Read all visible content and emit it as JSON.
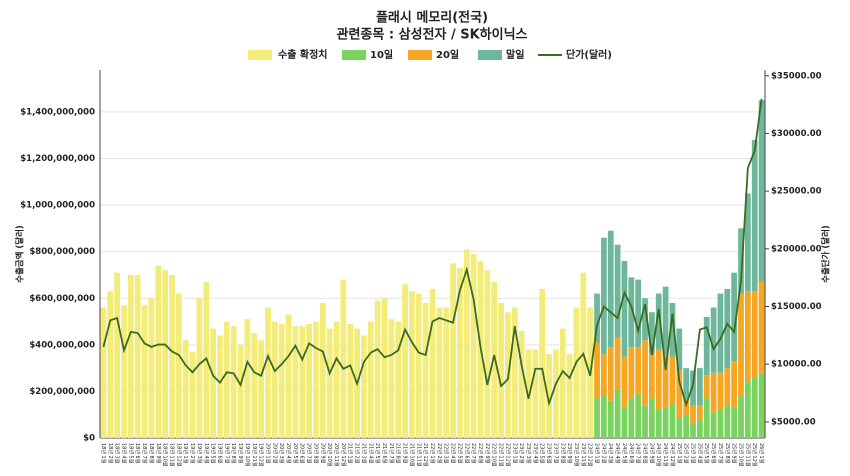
{
  "chart_data": {
    "type": "bar-line",
    "title": "플래시 메모리(전국)",
    "subtitle": "관련종목 : 삼성전자 / SK하이닉스",
    "y_label": "수출금액 (달러)",
    "y2_label": "수출단가 (달러)",
    "categories": [
      "18년 1월",
      "18년 2월",
      "18년 3월",
      "18년 4월",
      "18년 5월",
      "18년 6월",
      "18년 7월",
      "18년 8월",
      "18년 9월",
      "18년 10월",
      "18년 11월",
      "18년 12월",
      "19년 1월",
      "19년 2월",
      "19년 3월",
      "19년 4월",
      "19년 5월",
      "19년 6월",
      "19년 7월",
      "19년 8월",
      "19년 9월",
      "19년 10월",
      "19년 11월",
      "19년 12월",
      "20년 1월",
      "20년 2월",
      "20년 3월",
      "20년 4월",
      "20년 5월",
      "20년 6월",
      "20년 7월",
      "20년 8월",
      "20년 9월",
      "20년 10월",
      "20년 11월",
      "20년 12월",
      "21년 1월",
      "21년 2월",
      "21년 3월",
      "21년 4월",
      "21년 5월",
      "21년 6월",
      "21년 7월",
      "21년 8월",
      "21년 9월",
      "21년 10월",
      "21년 11월",
      "21년 12월",
      "22년 1월",
      "22년 2월",
      "22년 3월",
      "22년 4월",
      "22년 5월",
      "22년 6월",
      "22년 7월",
      "22년 8월",
      "22년 9월",
      "22년 10월",
      "22년 11월",
      "22년 12월",
      "23년 1월",
      "23년 2월",
      "23년 3월",
      "23년 4월",
      "23년 5월",
      "23년 6월",
      "23년 7월",
      "23년 8월",
      "23년 9월",
      "23년 10월",
      "23년 11월",
      "23년 12월",
      "24년 1월",
      "24년 2월",
      "24년 3월",
      "24년 4월",
      "24년 5월",
      "24년 6월",
      "24년 7월",
      "24년 8월",
      "24년 9월",
      "24년 10월",
      "24년 11월",
      "24년 12월",
      "25년 1월",
      "25년 2월",
      "25년 3월",
      "25년 4월",
      "25년 5월",
      "25년 6월",
      "25년 7월",
      "25년 8월",
      "25년 9월",
      "25년 10월",
      "25년 11월",
      "25년 12월",
      "26년 1월"
    ],
    "series": [
      {
        "name": "수출 확정치",
        "type": "bar",
        "color": "#f3ec78",
        "values": [
          560000000,
          630000000,
          710000000,
          570000000,
          700000000,
          700000000,
          570000000,
          600000000,
          740000000,
          720000000,
          700000000,
          620000000,
          420000000,
          370000000,
          600000000,
          670000000,
          470000000,
          440000000,
          500000000,
          480000000,
          400000000,
          510000000,
          450000000,
          420000000,
          560000000,
          500000000,
          490000000,
          530000000,
          480000000,
          480000000,
          490000000,
          500000000,
          580000000,
          470000000,
          500000000,
          680000000,
          490000000,
          470000000,
          440000000,
          500000000,
          590000000,
          600000000,
          510000000,
          500000000,
          660000000,
          630000000,
          620000000,
          580000000,
          640000000,
          560000000,
          560000000,
          750000000,
          730000000,
          810000000,
          790000000,
          760000000,
          720000000,
          670000000,
          580000000,
          540000000,
          560000000,
          460000000,
          380000000,
          380000000,
          640000000,
          360000000,
          380000000,
          470000000,
          360000000,
          560000000,
          710000000,
          560000000,
          null,
          null,
          null,
          null,
          null,
          null,
          null,
          null,
          null,
          null,
          null,
          null,
          null,
          null,
          null,
          null,
          null,
          null,
          null,
          null,
          null,
          null,
          null,
          null,
          null
        ]
      },
      {
        "name": "10일",
        "type": "bar",
        "color": "#7bd35f",
        "values": [
          null,
          null,
          null,
          null,
          null,
          null,
          null,
          null,
          null,
          null,
          null,
          null,
          null,
          null,
          null,
          null,
          null,
          null,
          null,
          null,
          null,
          null,
          null,
          null,
          null,
          null,
          null,
          null,
          null,
          null,
          null,
          null,
          null,
          null,
          null,
          null,
          null,
          null,
          null,
          null,
          null,
          null,
          null,
          null,
          null,
          null,
          null,
          null,
          null,
          null,
          null,
          null,
          null,
          null,
          null,
          null,
          null,
          null,
          null,
          null,
          null,
          null,
          null,
          null,
          null,
          null,
          null,
          null,
          null,
          null,
          null,
          null,
          170000000,
          180000000,
          160000000,
          210000000,
          130000000,
          170000000,
          190000000,
          140000000,
          170000000,
          120000000,
          130000000,
          150000000,
          90000000,
          100000000,
          60000000,
          80000000,
          170000000,
          110000000,
          120000000,
          140000000,
          130000000,
          180000000,
          240000000,
          260000000,
          280000000
        ]
      },
      {
        "name": "20일",
        "type": "bar",
        "color": "#f5a623",
        "values": [
          null,
          null,
          null,
          null,
          null,
          null,
          null,
          null,
          null,
          null,
          null,
          null,
          null,
          null,
          null,
          null,
          null,
          null,
          null,
          null,
          null,
          null,
          null,
          null,
          null,
          null,
          null,
          null,
          null,
          null,
          null,
          null,
          null,
          null,
          null,
          null,
          null,
          null,
          null,
          null,
          null,
          null,
          null,
          null,
          null,
          null,
          null,
          null,
          null,
          null,
          null,
          null,
          null,
          null,
          null,
          null,
          null,
          null,
          null,
          null,
          null,
          null,
          null,
          null,
          null,
          null,
          null,
          null,
          null,
          null,
          null,
          null,
          240000000,
          180000000,
          230000000,
          220000000,
          220000000,
          220000000,
          200000000,
          280000000,
          190000000,
          260000000,
          230000000,
          200000000,
          200000000,
          70000000,
          80000000,
          60000000,
          100000000,
          170000000,
          160000000,
          160000000,
          200000000,
          440000000,
          390000000,
          370000000,
          390000000
        ]
      },
      {
        "name": "말일",
        "type": "bar",
        "color": "#6db89c",
        "values": [
          null,
          null,
          null,
          null,
          null,
          null,
          null,
          null,
          null,
          null,
          null,
          null,
          null,
          null,
          null,
          null,
          null,
          null,
          null,
          null,
          null,
          null,
          null,
          null,
          null,
          null,
          null,
          null,
          null,
          null,
          null,
          null,
          null,
          null,
          null,
          null,
          null,
          null,
          null,
          null,
          null,
          null,
          null,
          null,
          null,
          null,
          null,
          null,
          null,
          null,
          null,
          null,
          null,
          null,
          null,
          null,
          null,
          null,
          null,
          null,
          null,
          null,
          null,
          null,
          null,
          null,
          null,
          null,
          null,
          null,
          null,
          null,
          210000000,
          500000000,
          500000000,
          400000000,
          410000000,
          300000000,
          290000000,
          180000000,
          180000000,
          240000000,
          290000000,
          230000000,
          180000000,
          130000000,
          150000000,
          160000000,
          250000000,
          280000000,
          340000000,
          340000000,
          380000000,
          280000000,
          420000000,
          650000000,
          780000000
        ]
      },
      {
        "name": "단가(달러)",
        "type": "line",
        "axis": "y2",
        "color": "#3d6b1e",
        "values": [
          11500,
          13800,
          14000,
          11200,
          12800,
          12700,
          11800,
          11500,
          11700,
          11700,
          11100,
          10800,
          9900,
          9300,
          10000,
          10500,
          9000,
          8400,
          9300,
          9200,
          8200,
          10200,
          9300,
          9000,
          10700,
          9400,
          10000,
          10700,
          11600,
          10400,
          11800,
          11400,
          11100,
          9200,
          10500,
          9600,
          9900,
          8300,
          10200,
          11000,
          11300,
          10600,
          10800,
          11200,
          13000,
          11900,
          11000,
          10800,
          13700,
          14000,
          13800,
          13600,
          16400,
          18200,
          15600,
          11500,
          8200,
          10800,
          8100,
          8700,
          13300,
          9900,
          7000,
          9600,
          9600,
          6600,
          8300,
          9400,
          8800,
          10200,
          10900,
          9000,
          13400,
          15000,
          14500,
          14000,
          16200,
          15000,
          12900,
          15200,
          10800,
          14800,
          9500,
          14400,
          8500,
          6500,
          8200,
          13000,
          13200,
          11300,
          12200,
          13500,
          12800,
          17200,
          27000,
          28500,
          33000
        ]
      }
    ],
    "ylim": [
      0,
      1580000000
    ],
    "yticks": [
      {
        "value": 0,
        "label": "$0"
      },
      {
        "value": 200000000,
        "label": "$200,000,000"
      },
      {
        "value": 400000000,
        "label": "$400,000,000"
      },
      {
        "value": 600000000,
        "label": "$600,000,000"
      },
      {
        "value": 800000000,
        "label": "$800,000,000"
      },
      {
        "value": 1000000000,
        "label": "$1,000,000,000"
      },
      {
        "value": 1200000000,
        "label": "$1,200,000,000"
      },
      {
        "value": 1400000000,
        "label": "$1,400,000,000"
      }
    ],
    "y2lim": [
      3600,
      35500
    ],
    "y2ticks": [
      {
        "value": 5000,
        "label": "$5000.00"
      },
      {
        "value": 10000,
        "label": "$10000.00"
      },
      {
        "value": 15000,
        "label": "$15000.00"
      },
      {
        "value": 20000,
        "label": "$20000.00"
      },
      {
        "value": 25000,
        "label": "$25000.00"
      },
      {
        "value": 30000,
        "label": "$30000.00"
      },
      {
        "value": 35000,
        "label": "$35000.00"
      }
    ],
    "grid": true
  }
}
